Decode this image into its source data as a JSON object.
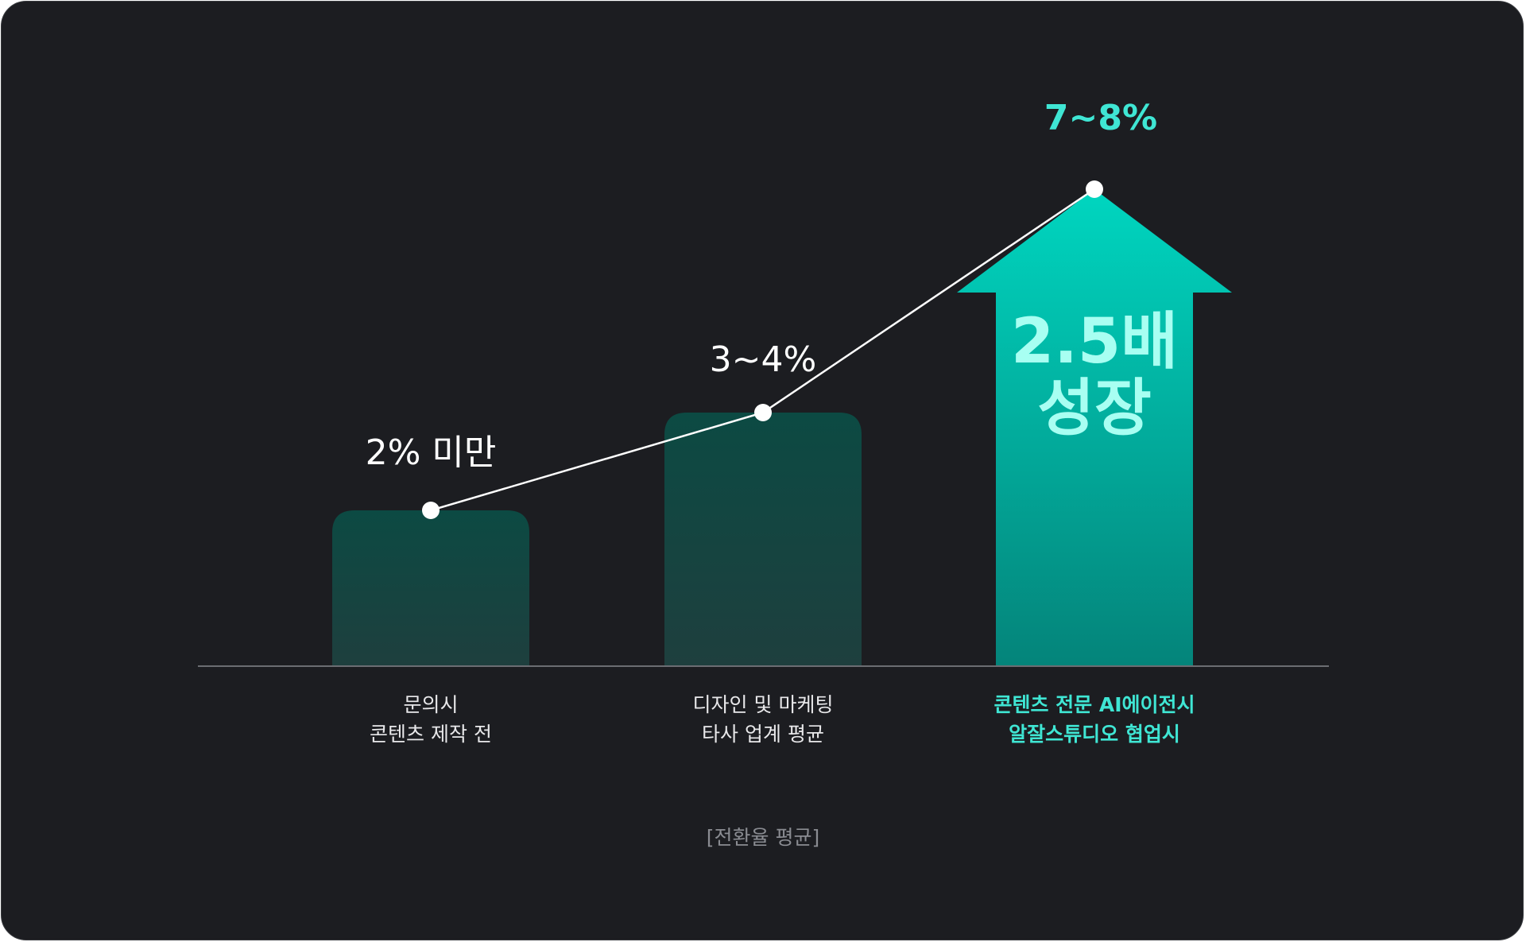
{
  "chart_data": {
    "type": "bar",
    "categories": [
      [
        "문의시",
        "콘텐츠 제작 전"
      ],
      [
        "디자인 및 마케팅",
        "타사 업계 평균"
      ],
      [
        "콘텐츠 전문 AI에이전시",
        "알잘스튜디오 협업시"
      ]
    ],
    "value_labels": [
      "2% 미만",
      "3~4%",
      "7~8%"
    ],
    "values": [
      2,
      3.5,
      7.5
    ],
    "series_line": true,
    "highlight_index": 2,
    "highlight_badge": [
      "2.5배",
      "성장"
    ],
    "caption": "[전환율 평균]",
    "title": "",
    "xlabel": "",
    "ylabel": "",
    "ylim": [
      0,
      7.5
    ],
    "grid": false,
    "legend": "none"
  },
  "colors": {
    "background": "#1c1d21",
    "bar_dark_top": "#0c4a43",
    "bar_dark_bottom": "#1e3f3e",
    "accent_top": "#00d6c0",
    "accent_bottom": "#04847a",
    "accent_text": "#3fe6d4",
    "badge_text": "#a8fff2",
    "line": "#ffffff",
    "axis": "#6b6d72"
  }
}
